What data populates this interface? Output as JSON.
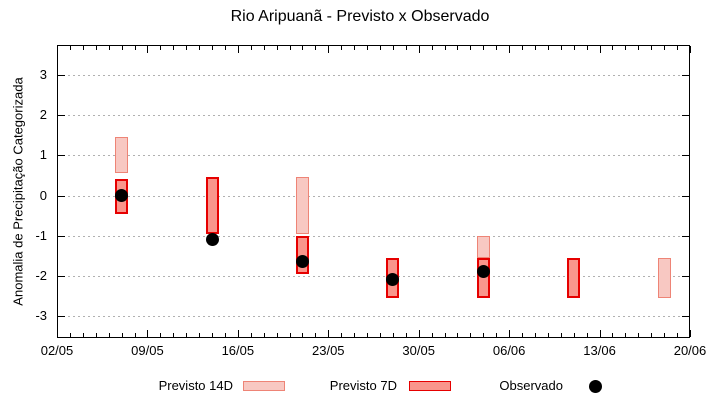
{
  "chart_data": {
    "type": "ranged-bar",
    "title": "Rio Aripuanã - Previsto x Observado",
    "ylabel": "Anomalia de Precipitação Categorizada",
    "xlabel": "",
    "ylim": [
      -3.5,
      3.5
    ],
    "yticks": [
      3,
      2,
      1,
      0,
      -1,
      -2,
      -3
    ],
    "grid": {
      "horizontal_dotted": true,
      "color": "#b0b0b0"
    },
    "x_axis_total_days": 49,
    "minor_xtick_every_days": 1,
    "xticks": [
      {
        "day": 0,
        "label": "02/05"
      },
      {
        "day": 7,
        "label": "09/05"
      },
      {
        "day": 14,
        "label": "16/05"
      },
      {
        "day": 21,
        "label": "23/05"
      },
      {
        "day": 28,
        "label": "30/05"
      },
      {
        "day": 35,
        "label": "06/06"
      },
      {
        "day": 42,
        "label": "13/06"
      },
      {
        "day": 49,
        "label": "20/06"
      }
    ],
    "legend": {
      "position": "bottom",
      "items": [
        {
          "label": "Previsto 14D",
          "swatch": "box",
          "fill": "#f8c8c2",
          "border": "#ee8476"
        },
        {
          "label": "Previsto 7D",
          "swatch": "box",
          "fill": "#f9968c",
          "border": "#e60000"
        },
        {
          "label": "Observado",
          "swatch": "dot",
          "fill": "#000000"
        }
      ]
    },
    "series_note": "previsto ranges are [low, high] category values; observado is a point value; null = not shown",
    "points": [
      {
        "date": "07/05",
        "day": 5,
        "previsto_14d": [
          0.55,
          1.45
        ],
        "previsto_7d": [
          -0.45,
          0.4
        ],
        "observado": 0.0
      },
      {
        "date": "14/05",
        "day": 12,
        "previsto_14d": null,
        "previsto_7d": [
          -0.95,
          0.45
        ],
        "observado": -1.1
      },
      {
        "date": "21/05",
        "day": 19,
        "previsto_14d": [
          -0.95,
          0.45
        ],
        "previsto_7d": [
          -1.95,
          -1.0
        ],
        "observado": -1.65
      },
      {
        "date": "28/05",
        "day": 26,
        "previsto_14d": null,
        "previsto_7d": [
          -2.55,
          -1.55
        ],
        "observado": -2.1
      },
      {
        "date": "04/06",
        "day": 33,
        "previsto_14d": [
          -1.55,
          -1.0
        ],
        "previsto_7d": [
          -2.55,
          -1.55
        ],
        "observado": -1.9
      },
      {
        "date": "11/06",
        "day": 40,
        "previsto_14d": null,
        "previsto_7d": [
          -2.55,
          -1.55
        ],
        "observado": null
      },
      {
        "date": "18/06",
        "day": 47,
        "previsto_14d": [
          -2.55,
          -1.55
        ],
        "previsto_7d": null,
        "observado": null
      }
    ]
  }
}
